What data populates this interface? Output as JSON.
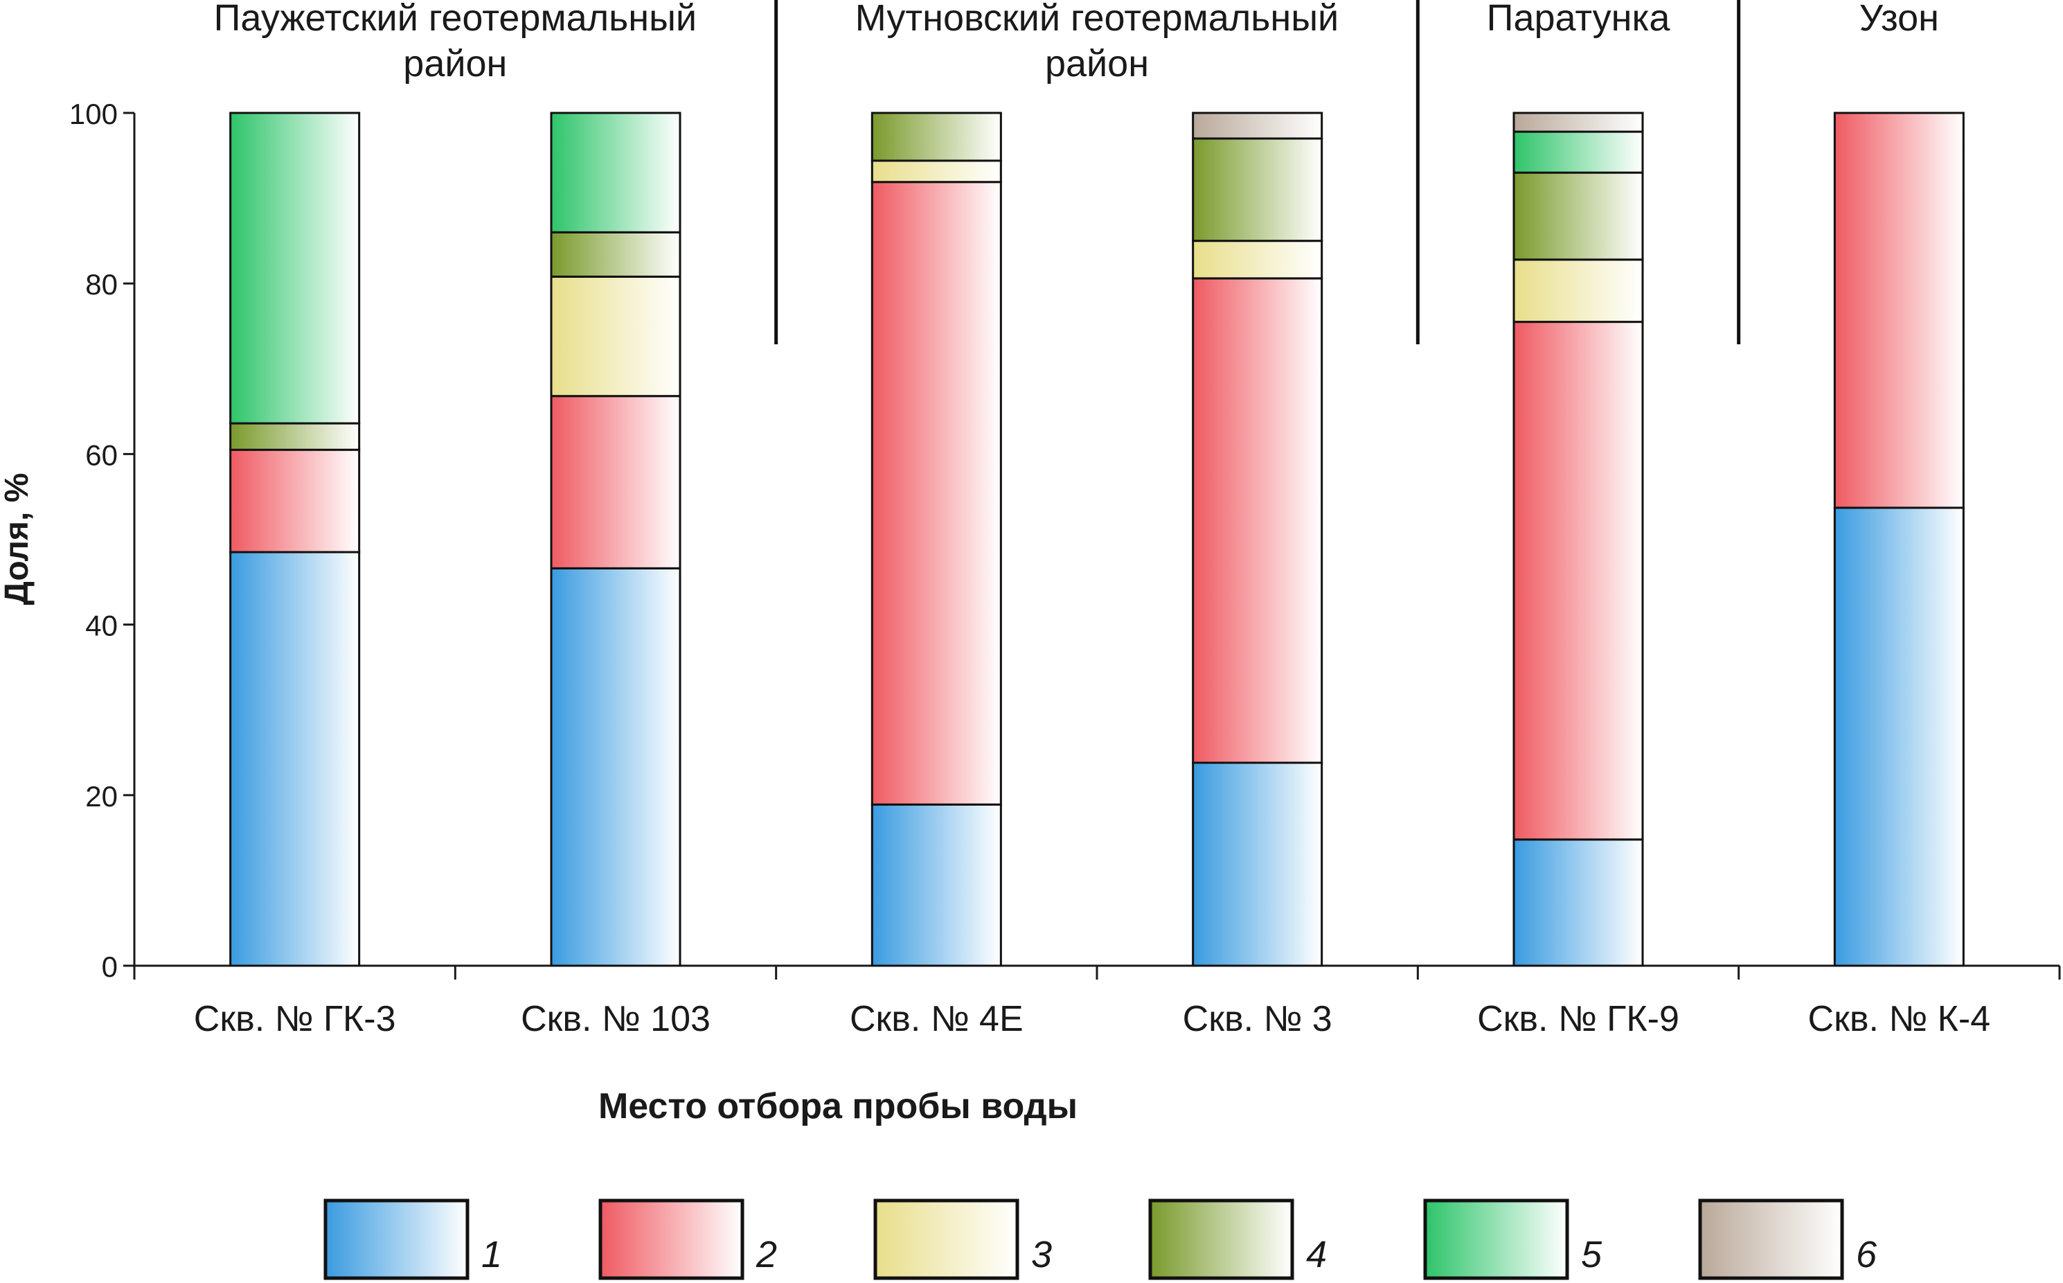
{
  "chart_data": {
    "type": "bar",
    "stacked": true,
    "ylabel": "Доля, %",
    "xlabel": "Место отбора пробы воды",
    "ylim": [
      0,
      100
    ],
    "yticks": [
      "0",
      "20",
      "40",
      "60",
      "80",
      "100"
    ],
    "grid": false,
    "legend_position": "bottom",
    "categories": [
      "Скв. № ГК-3",
      "Скв. № 103",
      "Скв. № 4Е",
      "Скв. № 3",
      "Скв. № ГК-9",
      "Скв. № К-4"
    ],
    "groups": [
      {
        "label_lines": [
          "Паужетский геотермальный",
          "район"
        ],
        "categories": [
          "Скв. № ГК-3",
          "Скв. № 103"
        ]
      },
      {
        "label_lines": [
          "Мутновский геотермальный",
          "район"
        ],
        "categories": [
          "Скв. № 4Е",
          "Скв. № 3"
        ]
      },
      {
        "label_lines": [
          "Паратунка"
        ],
        "categories": [
          "Скв. № ГК-9"
        ]
      },
      {
        "label_lines": [
          "Узон"
        ],
        "categories": [
          "Скв. № К-4"
        ]
      }
    ],
    "series": [
      {
        "name": "1",
        "color": "#3a9be0",
        "values": [
          48.5,
          46.6,
          18.9,
          23.8,
          14.8,
          53.7
        ]
      },
      {
        "name": "2",
        "color": "#ef5a62",
        "values": [
          12.0,
          20.2,
          73.0,
          56.8,
          60.7,
          46.3
        ]
      },
      {
        "name": "3",
        "color": "#e8de8a",
        "values": [
          0,
          14.0,
          2.5,
          4.4,
          7.3,
          0
        ]
      },
      {
        "name": "4",
        "color": "#7a9a2c",
        "values": [
          3.1,
          5.2,
          5.6,
          12.0,
          10.2,
          0
        ]
      },
      {
        "name": "5",
        "color": "#2ec46a",
        "values": [
          36.4,
          14.0,
          0,
          0,
          4.8,
          0
        ]
      },
      {
        "name": "6",
        "color": "#b9a899",
        "values": [
          0,
          0,
          0,
          3.0,
          2.2,
          0
        ]
      }
    ]
  }
}
